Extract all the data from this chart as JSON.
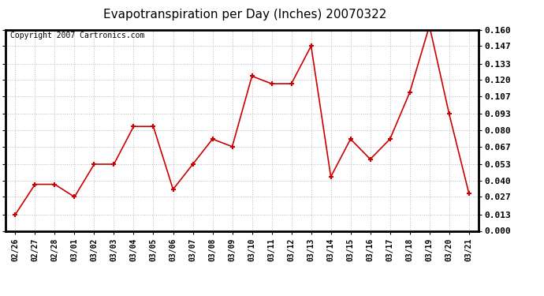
{
  "title": "Evapotranspiration per Day (Inches) 20070322",
  "copyright": "Copyright 2007 Cartronics.com",
  "dates": [
    "02/26",
    "02/27",
    "02/28",
    "03/01",
    "03/02",
    "03/03",
    "03/04",
    "03/05",
    "03/06",
    "03/07",
    "03/08",
    "03/09",
    "03/10",
    "03/11",
    "03/12",
    "03/13",
    "03/14",
    "03/15",
    "03/16",
    "03/17",
    "03/18",
    "03/19",
    "03/20",
    "03/21"
  ],
  "values": [
    0.013,
    0.037,
    0.037,
    0.027,
    0.053,
    0.053,
    0.083,
    0.083,
    0.033,
    0.053,
    0.073,
    0.067,
    0.123,
    0.117,
    0.117,
    0.147,
    0.043,
    0.073,
    0.057,
    0.073,
    0.11,
    0.163,
    0.093,
    0.03
  ],
  "ylim": [
    0.0,
    0.16
  ],
  "yticks": [
    0.0,
    0.013,
    0.027,
    0.04,
    0.053,
    0.067,
    0.08,
    0.093,
    0.107,
    0.12,
    0.133,
    0.147,
    0.16
  ],
  "line_color": "#cc0000",
  "marker": "+",
  "bg_color": "#ffffff",
  "grid_color": "#bbbbbb",
  "title_fontsize": 11,
  "copyright_fontsize": 7,
  "tick_fontsize": 8,
  "xtick_fontsize": 7
}
